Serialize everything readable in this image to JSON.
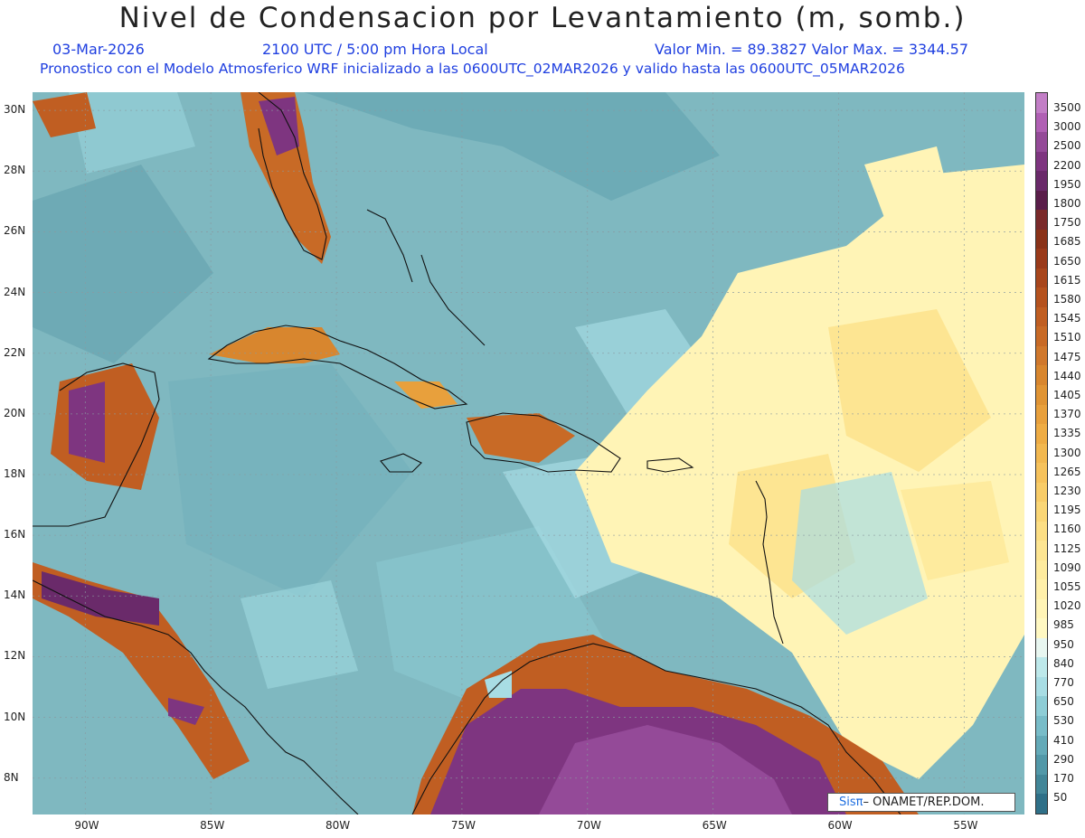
{
  "title": "Nivel de Condensacion por Levantamiento (m, somb.)",
  "date": "03-Mar-2026",
  "time": "2100 UTC / 5:00 pm Hora Local",
  "min_max": "Valor Min. = 89.3827  Valor Max. = 3344.57",
  "model_line": "Pronostico con el Modelo Atmosferico WRF inicializado a las 0600UTC_02MAR2026 y valido hasta las  0600UTC_05MAR2026",
  "lat_labels": [
    "30N",
    "28N",
    "26N",
    "24N",
    "22N",
    "20N",
    "18N",
    "16N",
    "14N",
    "12N",
    "10N",
    "8N"
  ],
  "lon_labels": [
    "90W",
    "85W",
    "80W",
    "75W",
    "70W",
    "65W",
    "60W",
    "55W"
  ],
  "colorbar": {
    "labels": [
      "3500",
      "3000",
      "2500",
      "2200",
      "1950",
      "1800",
      "1750",
      "1685",
      "1650",
      "1615",
      "1580",
      "1545",
      "1510",
      "1475",
      "1440",
      "1405",
      "1370",
      "1335",
      "1300",
      "1265",
      "1230",
      "1195",
      "1160",
      "1125",
      "1090",
      "1055",
      "1020",
      "985",
      "950",
      "840",
      "770",
      "650",
      "530",
      "410",
      "290",
      "170",
      "50"
    ],
    "colors": [
      "#c27ec6",
      "#b060b4",
      "#944a98",
      "#7e3580",
      "#6a2a6a",
      "#5a1e4a",
      "#7a2a2a",
      "#8a3218",
      "#9a3a1a",
      "#a8461c",
      "#b5521e",
      "#c05e22",
      "#c86a26",
      "#d0782c",
      "#d8862e",
      "#e09434",
      "#e8a03c",
      "#eeac44",
      "#f2b850",
      "#f6c25c",
      "#f8cc68",
      "#fad676",
      "#fcde84",
      "#fde592",
      "#feeb9e",
      "#fff0aa",
      "#fff4b6",
      "#fff8c2",
      "#e8f6f0",
      "#bde8ea",
      "#a8dde4",
      "#8ecdd6",
      "#78bcc8",
      "#64aab8",
      "#5298a8",
      "#428698",
      "#2f7088"
    ]
  },
  "credit_brand": "Sisπ",
  "credit_text": "– ONAMET/REP.DOM.",
  "map": {
    "lat_range": [
      6.8,
      30.6
    ],
    "lon_range": [
      -92.1,
      -52.6
    ],
    "color_ocean": "#7fb8c0",
    "color_land_high": "#b5521e",
    "color_land_peak": "#6a2a6a",
    "color_trade_dry": "#feeb9e"
  }
}
